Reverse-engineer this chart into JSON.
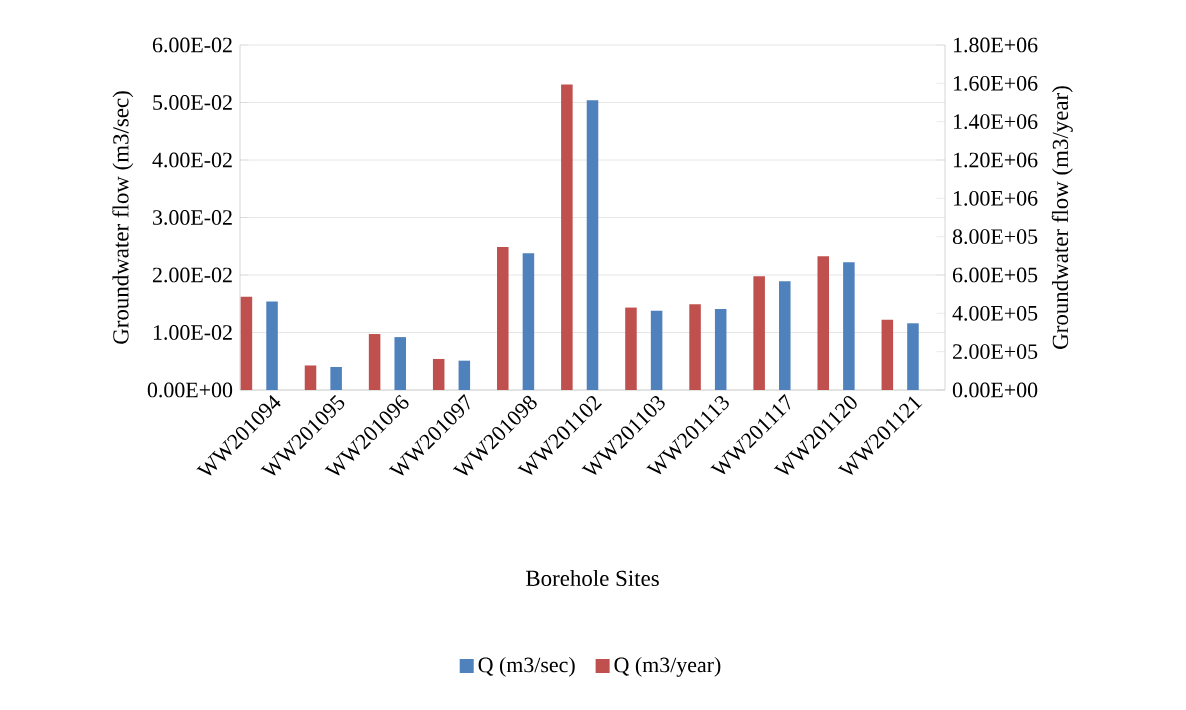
{
  "chart_data": {
    "type": "bar",
    "xlabel": "Borehole Sites",
    "ylabel": "Groundwater flow (m3/sec)",
    "y2label": "Groundwater flow (m3/year)",
    "categories": [
      "WW201094",
      "WW201095",
      "WW201096",
      "WW201097",
      "WW201098",
      "WW201102",
      "WW201103",
      "WW201113",
      "WW201117",
      "WW201120",
      "WW201121"
    ],
    "series": [
      {
        "name": "Q (m3/sec)",
        "color": "#4f81bd",
        "values": [
          0.0154,
          0.004,
          0.0092,
          0.0051,
          0.0238,
          0.0504,
          0.0138,
          0.0141,
          0.0189,
          0.0222,
          0.0116
        ]
      },
      {
        "name": "Q (m3/year)",
        "color": "#c0504d",
        "axis": "y2",
        "values": [
          487000,
          128000,
          292000,
          162000,
          746000,
          1594000,
          430000,
          447000,
          594000,
          698000,
          366000
        ]
      }
    ],
    "ylim": [
      0,
      0.06
    ],
    "yticks": [
      {
        "value": 0,
        "label": "0.00E+00"
      },
      {
        "value": 0.01,
        "label": "1.00E-02"
      },
      {
        "value": 0.02,
        "label": "2.00E-02"
      },
      {
        "value": 0.03,
        "label": "3.00E-02"
      },
      {
        "value": 0.04,
        "label": "4.00E-02"
      },
      {
        "value": 0.05,
        "label": "5.00E-02"
      },
      {
        "value": 0.06,
        "label": "6.00E-02"
      }
    ],
    "y2lim": [
      0,
      1800000
    ],
    "y2ticks": [
      {
        "value": 0,
        "label": "0.00E+00"
      },
      {
        "value": 200000,
        "label": "2.00E+05"
      },
      {
        "value": 400000,
        "label": "4.00E+05"
      },
      {
        "value": 600000,
        "label": "6.00E+05"
      },
      {
        "value": 800000,
        "label": "8.00E+05"
      },
      {
        "value": 1000000,
        "label": "1.00E+06"
      },
      {
        "value": 1200000,
        "label": "1.20E+06"
      },
      {
        "value": 1400000,
        "label": "1.40E+06"
      },
      {
        "value": 1600000,
        "label": "1.60E+06"
      },
      {
        "value": 1800000,
        "label": "1.80E+06"
      }
    ],
    "grid": "y",
    "legend": "bottom"
  }
}
